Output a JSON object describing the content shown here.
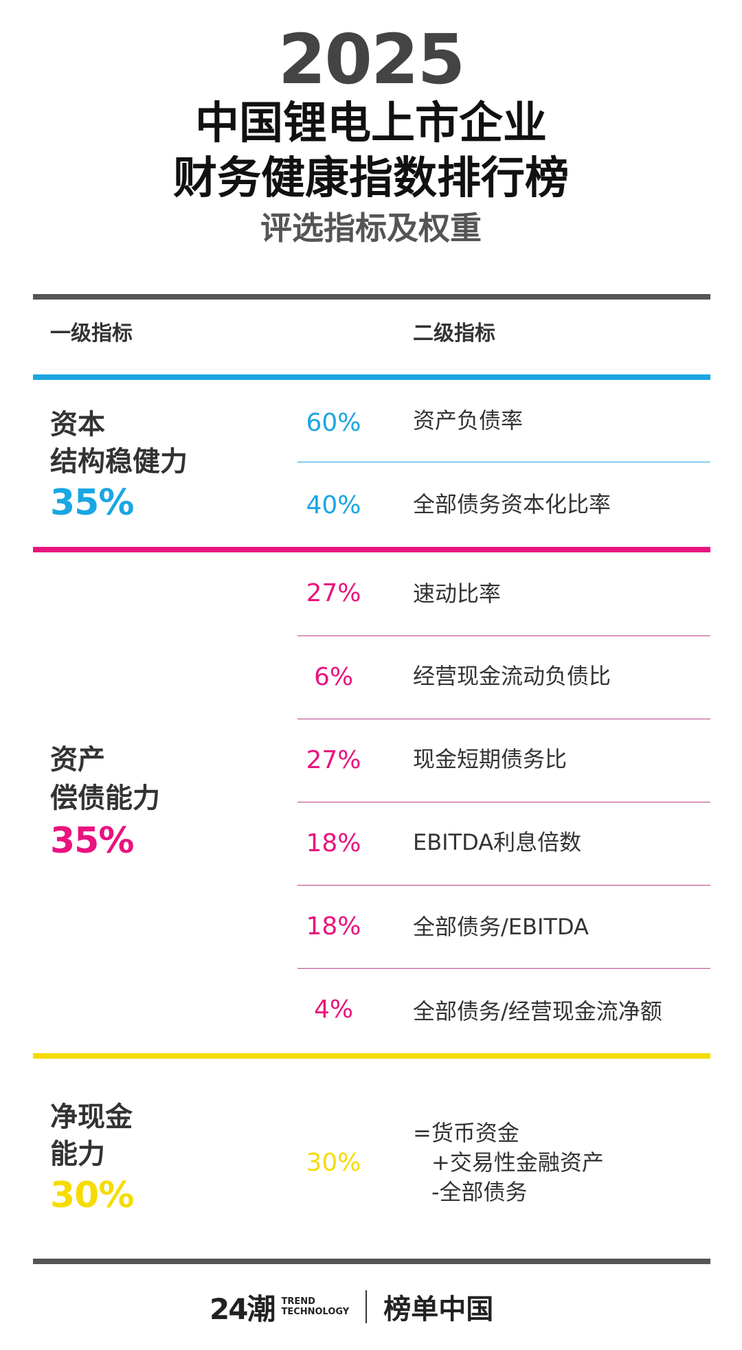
{
  "header": {
    "year": "2025",
    "title_line1": "中国锂电上市企业",
    "title_line2": "财务健康指数排行榜",
    "subtitle": "评选指标及权重"
  },
  "table": {
    "col1_header": "一级指标",
    "col2_header": "二级指标",
    "categories": [
      {
        "name_line1": "资本",
        "name_line2": "结构稳健力",
        "weight": "35%",
        "color": "#1aa6e3",
        "items": [
          {
            "weight": "60%",
            "name": "资产负债率"
          },
          {
            "weight": "40%",
            "name": "全部债务资本化比率"
          }
        ]
      },
      {
        "name_line1": "资产",
        "name_line2": "偿债能力",
        "weight": "35%",
        "color": "#e9137e",
        "items": [
          {
            "weight": "27%",
            "name": "速动比率"
          },
          {
            "weight": "6%",
            "name": "经营现金流动负债比"
          },
          {
            "weight": "27%",
            "name": "现金短期债务比"
          },
          {
            "weight": "18%",
            "name": "EBITDA利息倍数"
          },
          {
            "weight": "18%",
            "name": "全部债务/EBITDA"
          },
          {
            "weight": "4%",
            "name": "全部债务/经营现金流净额"
          }
        ]
      },
      {
        "name_line1": "净现金",
        "name_line2": "能力",
        "weight": "30%",
        "color": "#f5dc00",
        "items": [
          {
            "weight": "30%",
            "formula_line1": "=货币资金",
            "formula_line2": "+交易性金融资产",
            "formula_line3": "-全部债务"
          }
        ]
      }
    ]
  },
  "footer": {
    "brand_number": "24潮",
    "brand_en_line1": "TREND",
    "brand_en_line2": "TECHNOLOGY",
    "brand_cn": "榜单中国"
  }
}
